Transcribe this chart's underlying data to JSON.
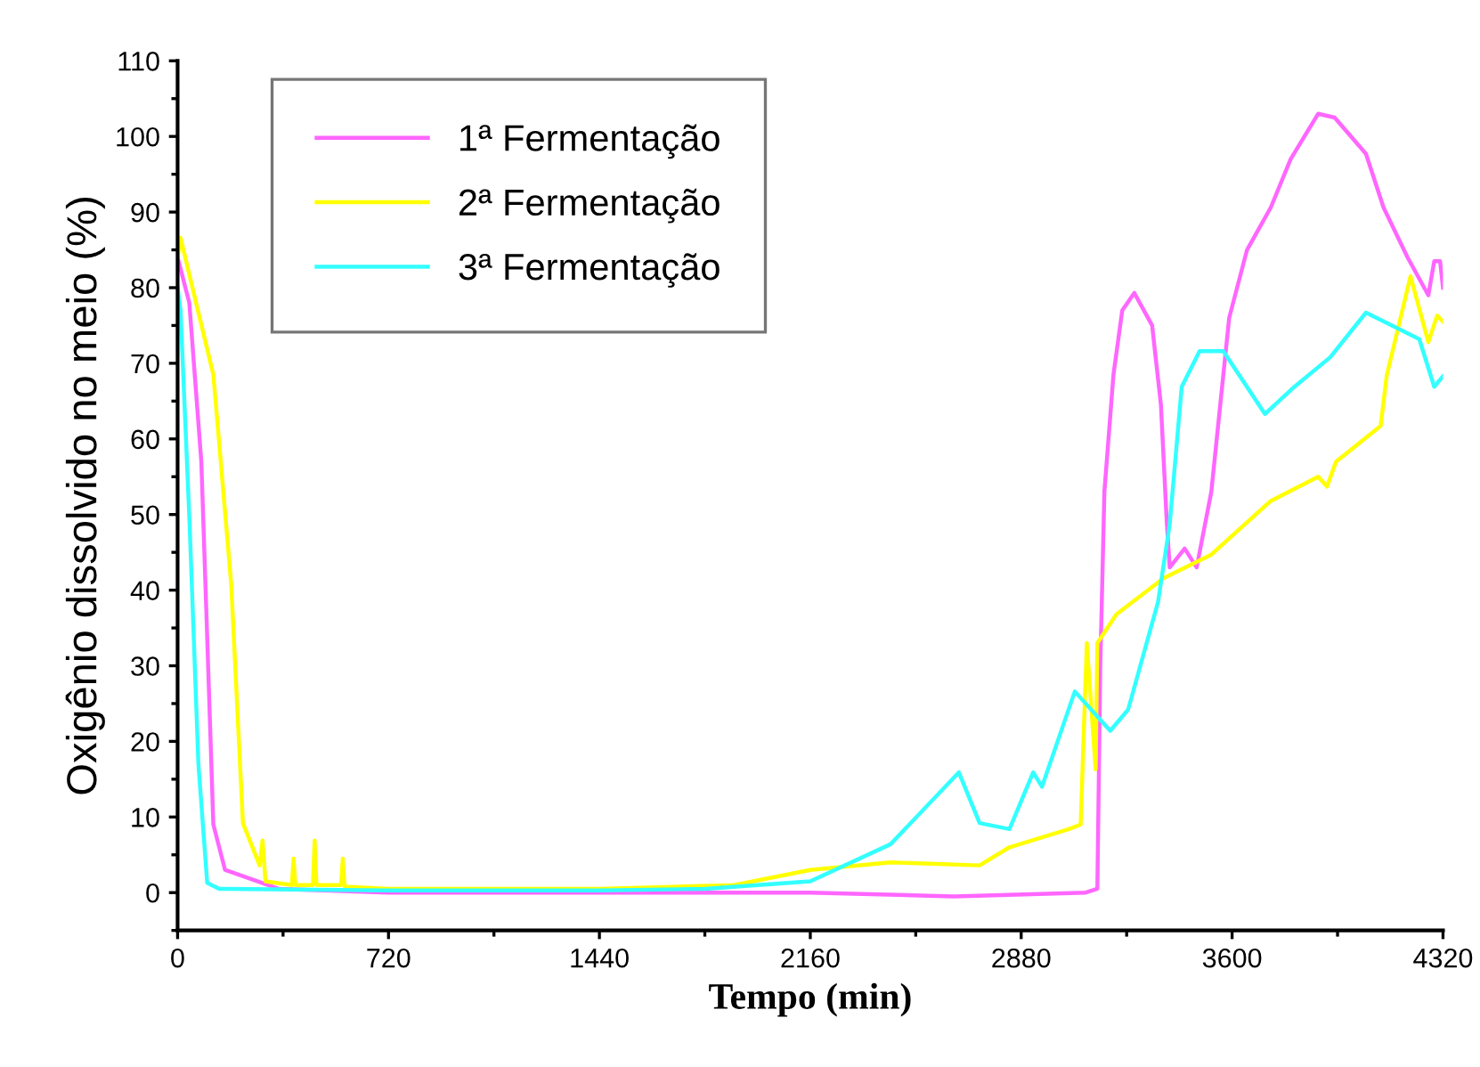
{
  "chart_data": {
    "type": "line",
    "xlabel": "Tempo (min)",
    "ylabel": "Oxigênio dissolvido no meio (%)",
    "xlim": [
      0,
      4320
    ],
    "ylim": [
      -5,
      110
    ],
    "xticks": [
      0,
      {
        "value": 360,
        "label": null
      },
      720,
      {
        "value": 1080,
        "label": null
      },
      1440,
      {
        "value": 1800,
        "label": null
      },
      2160,
      {
        "value": 2520,
        "label": null
      },
      2880,
      {
        "value": 3240,
        "label": null
      },
      3600,
      {
        "value": 3960,
        "label": null
      },
      4320
    ],
    "yticks": [
      {
        "value": -5,
        "label": null
      },
      0,
      {
        "value": 5,
        "label": null
      },
      10,
      {
        "value": 15,
        "label": null
      },
      20,
      {
        "value": 25,
        "label": null
      },
      30,
      {
        "value": 35,
        "label": null
      },
      40,
      {
        "value": 45,
        "label": null
      },
      50,
      {
        "value": 55,
        "label": null
      },
      60,
      {
        "value": 65,
        "label": null
      },
      70,
      {
        "value": 75,
        "label": null
      },
      80,
      {
        "value": 85,
        "label": null
      },
      90,
      {
        "value": 95,
        "label": null
      },
      100,
      {
        "value": 105,
        "label": null
      },
      110
    ],
    "grid": false,
    "legend": "top left",
    "marker": "none",
    "line_style": "solid",
    "series": [
      {
        "name": "1ª Fermentação",
        "color": "#ff66ff",
        "x": [
          0,
          40,
          81,
          100,
          122,
          162,
          345,
          720,
          1440,
          2160,
          2650,
          3100,
          3140,
          3150,
          3164,
          3195,
          3225,
          3266,
          3327,
          3357,
          3377,
          3387,
          3438,
          3479,
          3529,
          3590,
          3651,
          3732,
          3800,
          3894,
          3950,
          4057,
          4117,
          4199,
          4270,
          4290,
          4310,
          4320
        ],
        "values": [
          84,
          78,
          57,
          35,
          9,
          3,
          0.5,
          0,
          0,
          0,
          -0.5,
          0,
          0.5,
          30,
          53,
          68.5,
          77,
          79.3,
          75,
          64.5,
          49,
          43,
          45.5,
          43,
          53,
          76,
          85,
          90.6,
          97,
          103,
          102.5,
          97.7,
          90.6,
          84,
          79,
          83.5,
          83.5,
          80
        ]
      },
      {
        "name": "2ª Fermentação",
        "color": "#ffff00",
        "x": [
          0,
          10,
          122,
          183,
          223,
          280,
          290,
          300,
          390,
          396,
          402,
          462,
          468,
          474,
          558,
          564,
          570,
          720,
          1440,
          1900,
          2160,
          2434,
          2738,
          2840,
          3043,
          3083,
          3104,
          3134,
          3140,
          3205,
          3367,
          3529,
          3732,
          3894,
          3924,
          3955,
          4107,
          4128,
          4209,
          4270,
          4300,
          4320
        ],
        "values": [
          84,
          86.6,
          68.5,
          40.8,
          9.2,
          3.6,
          6.9,
          1.5,
          1,
          4.5,
          1,
          1,
          6.9,
          1,
          1,
          4.5,
          0.8,
          0.5,
          0.5,
          1,
          3,
          4,
          3.6,
          6,
          8.4,
          9,
          33,
          16.3,
          33,
          36.8,
          41.6,
          44.7,
          51.8,
          55,
          53.7,
          57,
          61.7,
          68.4,
          81.5,
          72.8,
          76.3,
          75.5
        ]
      },
      {
        "name": "3ª Fermentação",
        "color": "#33ffff",
        "x": [
          0,
          10,
          41,
          71,
          101,
          142,
          720,
          1440,
          1800,
          2160,
          2434,
          2667,
          2738,
          2840,
          2921,
          2951,
          3063,
          3184,
          3245,
          3347,
          3387,
          3428,
          3489,
          3570,
          3712,
          3813,
          3935,
          4057,
          4239,
          4290,
          4320
        ],
        "values": [
          80,
          77,
          48.7,
          17,
          1.3,
          0.5,
          0.3,
          0.3,
          0.5,
          1.5,
          6.4,
          15.9,
          9.2,
          8.4,
          15.9,
          14,
          26.6,
          21.4,
          24.2,
          38.4,
          48.7,
          66.9,
          71.6,
          71.6,
          63.3,
          66.9,
          70.8,
          76.7,
          73.2,
          66.9,
          68.3
        ]
      }
    ]
  }
}
